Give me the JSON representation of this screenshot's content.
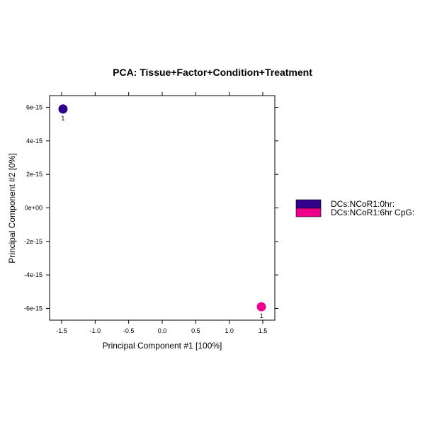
{
  "chart_data": {
    "type": "scatter",
    "title": "PCA: Tissue+Factor+Condition+Treatment",
    "xlabel": "Principal Component #1 [100%]",
    "ylabel": "Principal Component #2 [0%]",
    "xlim": [
      -1.68,
      1.68
    ],
    "ylim": [
      -6.7e-15,
      6.7e-15
    ],
    "xticks": [
      -1.5,
      -1.0,
      -0.5,
      0.0,
      0.5,
      1.0,
      1.5
    ],
    "xtick_labels": [
      "-1.5",
      "-1.0",
      "-0.5",
      "0.0",
      "0.5",
      "1.0",
      "1.5"
    ],
    "yticks": [
      6e-15,
      4e-15,
      2e-15,
      0,
      -2e-15,
      -4e-15,
      -6e-15
    ],
    "ytick_labels": [
      "6e-15",
      "4e-15",
      "2e-15",
      "0e+00",
      "-2e-15",
      "-4e-15",
      "-6e-15"
    ],
    "grid": false,
    "legend_position": "right",
    "series": [
      {
        "name": "DCs:NCoR1:0hr:",
        "color": "#33008C",
        "points": [
          {
            "x": -1.48,
            "y": 5.9e-15,
            "label": "1"
          }
        ]
      },
      {
        "name": "DCs:NCoR1:6hr CpG:",
        "color": "#EE008C",
        "points": [
          {
            "x": 1.48,
            "y": -5.9e-15,
            "label": "1"
          }
        ]
      }
    ]
  }
}
